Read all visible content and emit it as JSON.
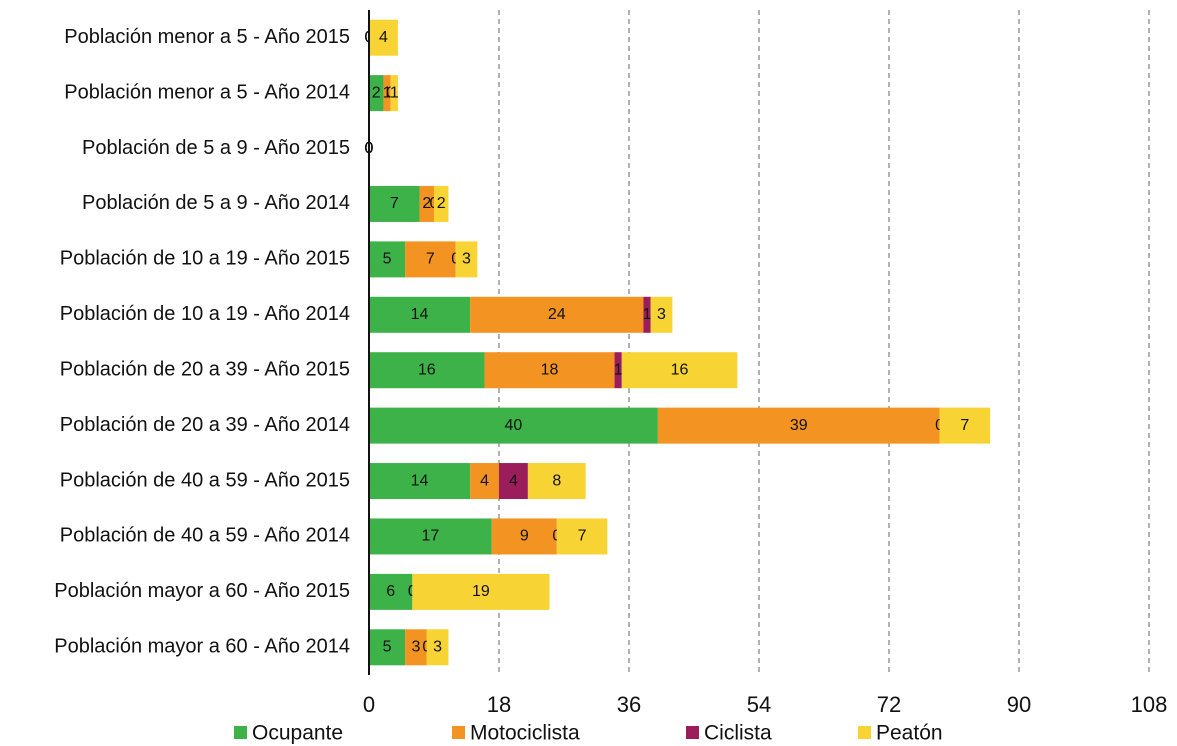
{
  "chart_data": {
    "type": "stacked-barh",
    "categories": [
      "Población menor a 5 - Año 2015",
      "Población menor a 5 - Año 2014",
      "Población de 5 a 9 - Año 2015",
      "Población de 5 a 9 - Año 2014",
      "Población de 10 a 19 - Año 2015",
      "Población de 10 a 19 - Año 2014",
      "Población de 20 a 39 - Año 2015",
      "Población de 20 a 39 - Año 2014",
      "Población de 40 a 59 - Año 2015",
      "Población de 40 a 59 - Año 2014",
      "Población mayor a 60 - Año 2015",
      "Población mayor a 60 - Año 2014"
    ],
    "series": [
      {
        "name": "Ocupante",
        "color": "#3db249",
        "values": [
          0,
          2,
          0,
          7,
          5,
          14,
          16,
          40,
          14,
          17,
          6,
          5
        ]
      },
      {
        "name": "Motociclista",
        "color": "#f39321",
        "values": [
          0,
          1,
          0,
          2,
          7,
          24,
          18,
          39,
          4,
          9,
          0,
          3
        ]
      },
      {
        "name": "Ciclista",
        "color": "#9c1d5b",
        "values": [
          0,
          0,
          0,
          0,
          0,
          1,
          1,
          0,
          4,
          0,
          0,
          0
        ]
      },
      {
        "name": "Peatón",
        "color": "#f7d433",
        "values": [
          4,
          1,
          0,
          2,
          3,
          3,
          16,
          7,
          8,
          7,
          19,
          3
        ]
      }
    ],
    "xlim": [
      0,
      108
    ],
    "xticks": [
      0,
      18,
      36,
      54,
      72,
      90,
      108
    ],
    "grid": true,
    "legend": "bottom"
  }
}
